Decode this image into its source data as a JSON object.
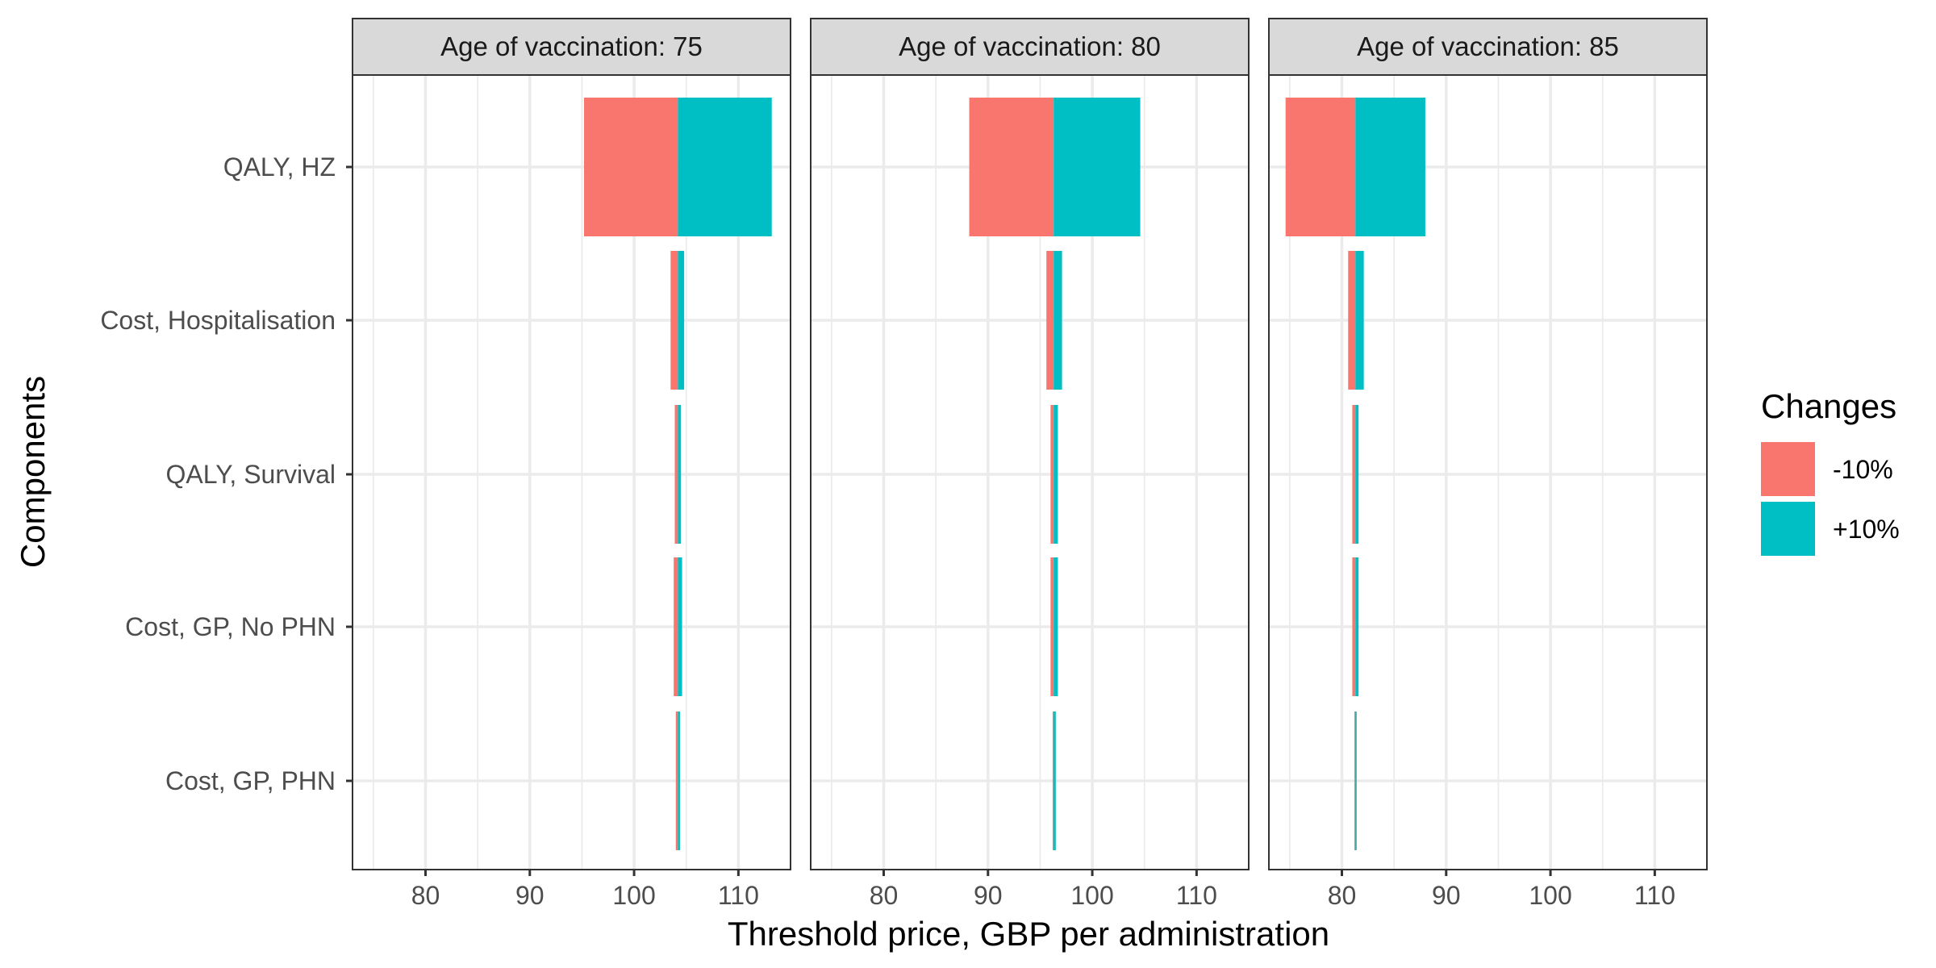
{
  "chart_data": {
    "type": "bar",
    "orientation": "horizontal",
    "subtype": "tornado",
    "xlabel": "Threshold price, GBP per administration",
    "ylabel": "Components",
    "xlim": [
      73,
      115
    ],
    "x_ticks": [
      80,
      90,
      100,
      110
    ],
    "x_tick_labels": [
      "80",
      "90",
      "100",
      "110"
    ],
    "categories": [
      "QALY, HZ",
      "Cost, Hospitalisation",
      "QALY, Survival",
      "Cost, GP, No PHN",
      "Cost, GP, PHN"
    ],
    "legend": {
      "title": "Changes",
      "position": "right",
      "entries": [
        {
          "label": "-10%",
          "color": "#F8766D"
        },
        {
          "label": "+10%",
          "color": "#00BFC4"
        }
      ]
    },
    "grid": true,
    "facets": [
      {
        "label": "Age of vaccination: 75",
        "base": 104.2,
        "series": [
          {
            "name": "-10%",
            "color": "#F8766D",
            "values": [
              95.2,
              103.5,
              103.9,
              103.8,
              104.0
            ]
          },
          {
            "name": "+10%",
            "color": "#00BFC4",
            "values": [
              113.2,
              104.8,
              104.5,
              104.6,
              104.4
            ]
          }
        ]
      },
      {
        "label": "Age of vaccination: 80",
        "base": 96.3,
        "series": [
          {
            "name": "-10%",
            "color": "#F8766D",
            "values": [
              88.2,
              95.6,
              96.0,
              96.0,
              96.2
            ]
          },
          {
            "name": "+10%",
            "color": "#00BFC4",
            "values": [
              104.6,
              97.1,
              96.7,
              96.7,
              96.5
            ]
          }
        ]
      },
      {
        "label": "Age of vaccination: 85",
        "base": 81.3,
        "series": [
          {
            "name": "-10%",
            "color": "#F8766D",
            "values": [
              74.6,
              80.6,
              81.0,
              81.0,
              81.2
            ]
          },
          {
            "name": "+10%",
            "color": "#00BFC4",
            "values": [
              88.0,
              82.1,
              81.6,
              81.6,
              81.4
            ]
          }
        ]
      }
    ]
  }
}
